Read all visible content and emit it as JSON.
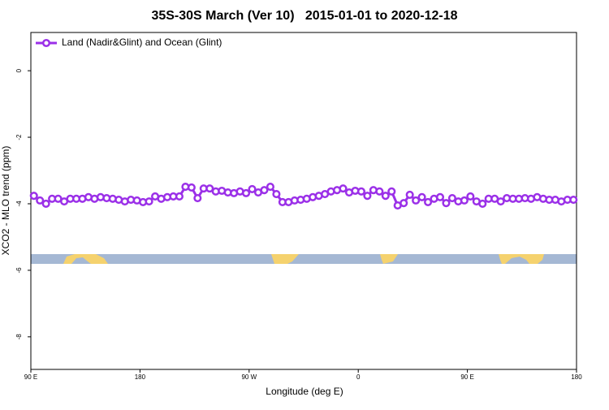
{
  "chart_data": {
    "type": "line",
    "title": "35S-30S March (Ver 10)   2015-01-01 to 2020-12-18",
    "xlabel": "Longitude (deg E)",
    "ylabel": "XCO2 - MLO trend (ppm)",
    "x": [
      92.5,
      97.5,
      102.5,
      107.5,
      112.5,
      117.5,
      122.5,
      127.5,
      132.5,
      137.5,
      142.5,
      147.5,
      152.5,
      157.5,
      162.5,
      167.5,
      172.5,
      177.5,
      182.5,
      187.5,
      192.5,
      197.5,
      202.5,
      207.5,
      212.5,
      217.5,
      222.5,
      227.5,
      232.5,
      237.5,
      242.5,
      247.5,
      252.5,
      257.5,
      262.5,
      267.5,
      272.5,
      277.5,
      282.5,
      287.5,
      292.5,
      297.5,
      302.5,
      307.5,
      312.5,
      317.5,
      322.5,
      327.5,
      332.5,
      337.5,
      342.5,
      347.5,
      352.5,
      357.5,
      362.5,
      367.5,
      372.5,
      377.5,
      382.5,
      387.5,
      392.5,
      397.5,
      402.5,
      407.5,
      412.5,
      417.5,
      422.5,
      427.5,
      432.5,
      437.5,
      442.5,
      447.5,
      452.5,
      457.5,
      462.5,
      467.5,
      472.5,
      477.5,
      482.5,
      487.5,
      492.5,
      497.5,
      502.5,
      507.5,
      512.5,
      517.5,
      522.5,
      527.5,
      532.5,
      537.5
    ],
    "series": [
      {
        "name": "Land (Nadir&Glint) and Ocean (Glint)",
        "color": "#9b30e8",
        "values": [
          -3.76,
          -3.9,
          -4.0,
          -3.85,
          -3.85,
          -3.93,
          -3.85,
          -3.85,
          -3.85,
          -3.8,
          -3.85,
          -3.8,
          -3.83,
          -3.85,
          -3.88,
          -3.93,
          -3.88,
          -3.9,
          -3.95,
          -3.93,
          -3.78,
          -3.85,
          -3.8,
          -3.78,
          -3.78,
          -3.49,
          -3.51,
          -3.83,
          -3.54,
          -3.54,
          -3.63,
          -3.61,
          -3.66,
          -3.68,
          -3.63,
          -3.68,
          -3.56,
          -3.66,
          -3.59,
          -3.49,
          -3.71,
          -3.95,
          -3.95,
          -3.9,
          -3.88,
          -3.85,
          -3.8,
          -3.76,
          -3.71,
          -3.63,
          -3.59,
          -3.54,
          -3.66,
          -3.61,
          -3.63,
          -3.76,
          -3.59,
          -3.63,
          -3.76,
          -3.63,
          -4.05,
          -3.98,
          -3.73,
          -3.9,
          -3.8,
          -3.95,
          -3.85,
          -3.8,
          -3.98,
          -3.83,
          -3.93,
          -3.9,
          -3.78,
          -3.93,
          -4.0,
          -3.85,
          -3.85,
          -3.93,
          -3.83,
          -3.85,
          -3.85,
          -3.83,
          -3.85,
          -3.8,
          -3.85,
          -3.88,
          -3.88,
          -3.93,
          -3.88,
          -3.88
        ]
      }
    ],
    "xlim": [
      90,
      540
    ],
    "xticks": [
      {
        "value": 90,
        "label": "90 E"
      },
      {
        "value": 180,
        "label": "180"
      },
      {
        "value": 270,
        "label": "90 W"
      },
      {
        "value": 360,
        "label": "0"
      },
      {
        "value": 450,
        "label": "90 E"
      },
      {
        "value": 540,
        "label": "180"
      }
    ],
    "ylim": [
      -8.98,
      1.15
    ],
    "yticks": [
      0,
      -2,
      -4,
      -6,
      -8
    ],
    "legend_loc": "upper left"
  }
}
